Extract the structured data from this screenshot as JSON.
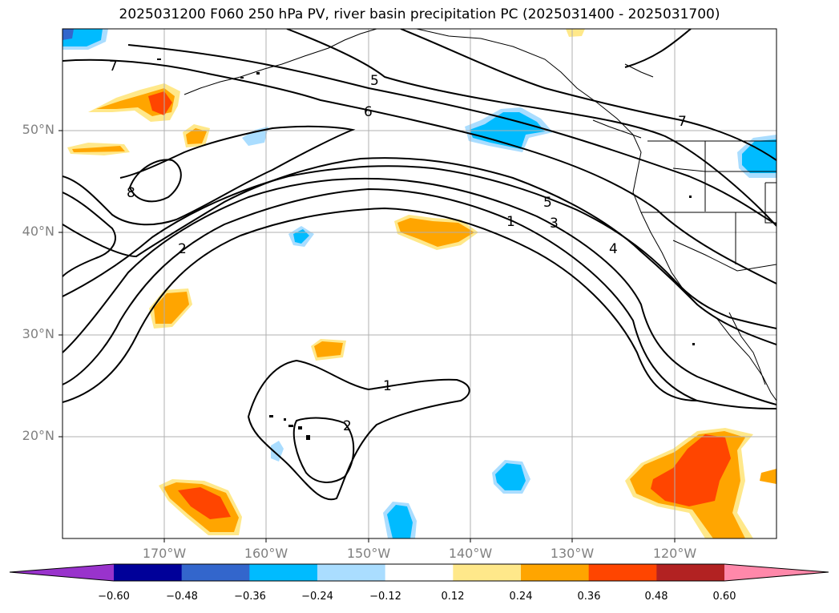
{
  "title": "2025031200 F060 250 hPa PV, river basin precipitation PC (2025031400 - 2025031700)",
  "map": {
    "projection": "lat-lon",
    "lat_labels": [
      "50°N",
      "40°N",
      "30°N",
      "20°N"
    ],
    "lon_labels": [
      "170°W",
      "160°W",
      "150°W",
      "140°W",
      "130°W",
      "120°W"
    ],
    "contour_labels": [
      "7",
      "5",
      "6",
      "7",
      "8",
      "2",
      "5",
      "1",
      "3",
      "4",
      "1",
      "2"
    ],
    "grid": true,
    "coastlines": true
  },
  "colorbar": {
    "ticks": [
      "−0.60",
      "−0.48",
      "−0.36",
      "−0.24",
      "−0.12",
      "0.12",
      "0.24",
      "0.36",
      "0.48",
      "0.60"
    ],
    "colors": [
      "#9933cc",
      "#000099",
      "#3366cc",
      "#00bbff",
      "#aaddff",
      "#ffffff",
      "#ffe88a",
      "#ffa500",
      "#ff4500",
      "#b22222",
      "#ff88aa"
    ],
    "extend": "both"
  }
}
